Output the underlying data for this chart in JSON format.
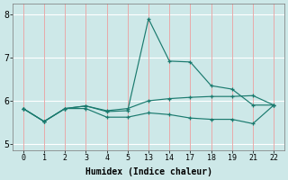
{
  "xlabel": "Humidex (Indice chaleur)",
  "bg_color": "#cde8e8",
  "line_color": "#1a7a6e",
  "red_vgrid_color": "#e8aaaa",
  "white_hgrid_color": "#ffffff",
  "xlim": [
    -0.5,
    12.5
  ],
  "ylim": [
    4.85,
    8.25
  ],
  "xtick_labels": [
    "0",
    "1",
    "2",
    "3",
    "4",
    "5",
    "13",
    "14",
    "17",
    "18",
    "19",
    "21",
    "22"
  ],
  "yticks": [
    5,
    6,
    7,
    8
  ],
  "series": [
    {
      "xi": [
        0,
        1,
        2,
        3,
        4,
        5,
        6,
        7,
        8,
        9,
        10,
        11,
        12
      ],
      "y": [
        5.82,
        5.52,
        5.82,
        5.88,
        5.75,
        5.77,
        7.9,
        6.92,
        6.9,
        6.35,
        6.27,
        5.9,
        5.9
      ]
    },
    {
      "xi": [
        0,
        1,
        2,
        3,
        4,
        5,
        6,
        7,
        8,
        9,
        10,
        11,
        12
      ],
      "y": [
        5.82,
        5.52,
        5.82,
        5.88,
        5.77,
        5.82,
        6.0,
        6.05,
        6.08,
        6.1,
        6.1,
        6.12,
        5.9
      ]
    },
    {
      "xi": [
        0,
        1,
        2,
        3,
        4,
        5,
        6,
        7,
        8,
        9,
        10,
        11,
        12
      ],
      "y": [
        5.82,
        5.52,
        5.82,
        5.82,
        5.62,
        5.62,
        5.72,
        5.68,
        5.6,
        5.57,
        5.57,
        5.47,
        5.9
      ]
    }
  ]
}
